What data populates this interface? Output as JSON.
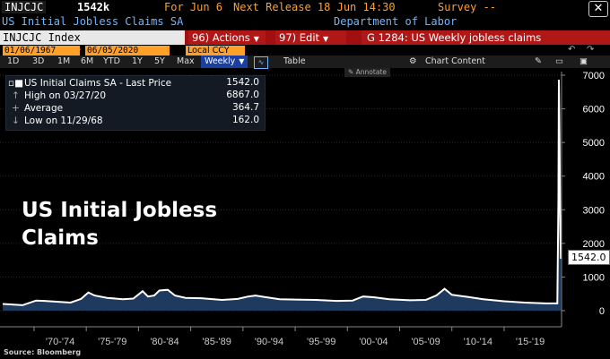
{
  "header": {
    "ticker": "INJCJC",
    "last_value": "1542k",
    "for_text": "For Jun 6",
    "next_release": "Next Release 18 Jun 14:30",
    "survey": "Survey --",
    "close_label": "✕"
  },
  "description": {
    "name": "US Initial Jobless Claims SA",
    "source": "Department of Labor"
  },
  "command_bar": {
    "security": "INJCJC Index",
    "actions": "96) Actions",
    "edit": "97) Edit",
    "graph_title": "G 1284: US Weekly jobless claims"
  },
  "range_bar": {
    "start_date": "01/06/1967",
    "end_date": "06/05/2020",
    "currency": "Local CCY"
  },
  "toolbar": {
    "periods": [
      "1D",
      "3D",
      "1M",
      "6M",
      "YTD",
      "1Y",
      "5Y",
      "Max"
    ],
    "frequency": "Weekly",
    "table": "Table",
    "chart_content": "Chart Content"
  },
  "legend": {
    "series_label": "US Initial Claims SA - Last Price",
    "series_value": "1542.0",
    "high_label": "High on 03/27/20",
    "high_value": "6867.0",
    "avg_label": "Average",
    "avg_value": "364.7",
    "low_label": "Low on 11/29/68",
    "low_value": "162.0",
    "annotate": "Annotate"
  },
  "overlay": {
    "title_line1": "US Initial Jobless",
    "title_line2": "Claims",
    "source": "Source: Bloomberg",
    "last_badge": "1542.0"
  },
  "colors": {
    "orange": "#ffa028",
    "red_bar": "#a01010",
    "area_fill": "#1e3a5f",
    "line": "#ffffff"
  },
  "chart_data": {
    "type": "area",
    "x_ticks": [
      "'70-'74",
      "'75-'79",
      "'80-'84",
      "'85-'89",
      "'90-'94",
      "'95-'99",
      "'00-'04",
      "'05-'09",
      "'10-'14",
      "'15-'19"
    ],
    "y_ticks": [
      0,
      1000,
      2000,
      3000,
      4000,
      5000,
      6000,
      7000
    ],
    "ylim": [
      0,
      7000
    ],
    "xlim": [
      1967.0,
      2020.5
    ],
    "series": [
      {
        "name": "US Initial Claims SA",
        "x": [
          1967.0,
          1968.9,
          1970.2,
          1971.0,
          1972.5,
          1973.5,
          1974.5,
          1975.2,
          1975.8,
          1977.0,
          1978.5,
          1979.5,
          1980.4,
          1980.9,
          1981.5,
          1982.0,
          1982.8,
          1983.5,
          1984.5,
          1986.0,
          1988.0,
          1989.5,
          1990.5,
          1991.2,
          1992.0,
          1993.5,
          1995.0,
          1997.0,
          1999.0,
          2000.5,
          2001.5,
          2002.5,
          2004.0,
          2006.0,
          2007.5,
          2008.5,
          2009.3,
          2010.0,
          2011.5,
          2013.0,
          2015.0,
          2017.0,
          2019.0,
          2020.1,
          2020.2,
          2020.24,
          2020.3,
          2020.35,
          2020.43
        ],
        "y": [
          200,
          162,
          300,
          290,
          260,
          240,
          350,
          540,
          450,
          380,
          340,
          360,
          580,
          420,
          450,
          600,
          620,
          450,
          380,
          370,
          320,
          350,
          420,
          450,
          410,
          340,
          330,
          320,
          290,
          300,
          420,
          400,
          340,
          310,
          320,
          450,
          650,
          470,
          410,
          340,
          280,
          240,
          215,
          215,
          3300,
          6867,
          5200,
          3100,
          1542
        ]
      }
    ]
  }
}
